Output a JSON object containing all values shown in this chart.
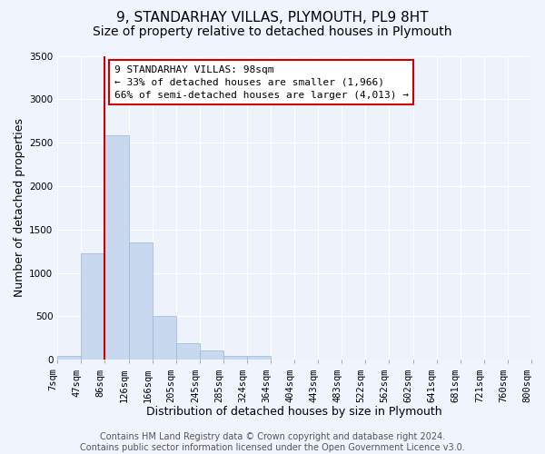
{
  "title": "9, STANDARHAY VILLAS, PLYMOUTH, PL9 8HT",
  "subtitle": "Size of property relative to detached houses in Plymouth",
  "xlabel": "Distribution of detached houses by size in Plymouth",
  "ylabel": "Number of detached properties",
  "bin_labels": [
    "7sqm",
    "47sqm",
    "86sqm",
    "126sqm",
    "166sqm",
    "205sqm",
    "245sqm",
    "285sqm",
    "324sqm",
    "364sqm",
    "404sqm",
    "443sqm",
    "483sqm",
    "522sqm",
    "562sqm",
    "602sqm",
    "641sqm",
    "681sqm",
    "721sqm",
    "760sqm",
    "800sqm"
  ],
  "bar_values": [
    50,
    1230,
    2590,
    1350,
    500,
    195,
    110,
    50,
    50,
    0,
    0,
    0,
    0,
    0,
    0,
    0,
    0,
    0,
    0,
    0
  ],
  "bar_color": "#c8d9ef",
  "bar_edge_color": "#9ab5d8",
  "vline_x_bin": 2,
  "vline_color": "#cc0000",
  "ylim": [
    0,
    3500
  ],
  "yticks": [
    0,
    500,
    1000,
    1500,
    2000,
    2500,
    3000,
    3500
  ],
  "annotation_text": "9 STANDARHAY VILLAS: 98sqm\n← 33% of detached houses are smaller (1,966)\n66% of semi-detached houses are larger (4,013) →",
  "annotation_box_color": "#ffffff",
  "annotation_box_edge": "#cc0000",
  "footer_text": "Contains HM Land Registry data © Crown copyright and database right 2024.\nContains public sector information licensed under the Open Government Licence v3.0.",
  "bg_color": "#f0f4fc",
  "plot_bg_color": "#eef3fb",
  "grid_color": "#ffffff",
  "title_fontsize": 11,
  "subtitle_fontsize": 10,
  "axis_label_fontsize": 9,
  "tick_fontsize": 7.5,
  "annotation_fontsize": 8,
  "footer_fontsize": 7
}
